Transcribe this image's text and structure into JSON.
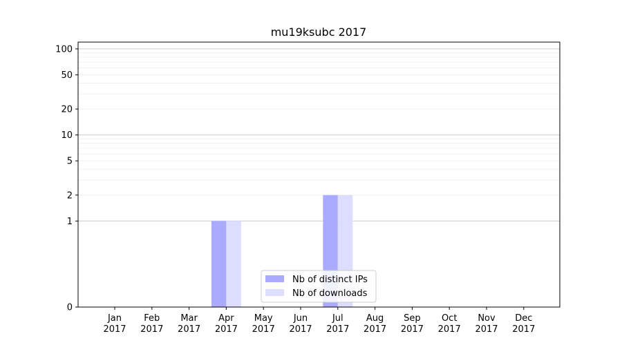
{
  "chart_data": {
    "type": "bar",
    "title": "mu19ksubc 2017",
    "xlabel": "",
    "ylabel": "",
    "y_scale": "symlog",
    "ylim": [
      0,
      120
    ],
    "y_ticks": [
      0,
      1,
      2,
      5,
      10,
      20,
      50,
      100
    ],
    "y_tick_labels": [
      "0",
      "1",
      "2",
      "5",
      "10",
      "20",
      "50",
      "100"
    ],
    "grid": true,
    "legend_position": "bottom-center",
    "categories": [
      [
        "Jan",
        "2017"
      ],
      [
        "Feb",
        "2017"
      ],
      [
        "Mar",
        "2017"
      ],
      [
        "Apr",
        "2017"
      ],
      [
        "May",
        "2017"
      ],
      [
        "Jun",
        "2017"
      ],
      [
        "Jul",
        "2017"
      ],
      [
        "Aug",
        "2017"
      ],
      [
        "Sep",
        "2017"
      ],
      [
        "Oct",
        "2017"
      ],
      [
        "Nov",
        "2017"
      ],
      [
        "Dec",
        "2017"
      ]
    ],
    "series": [
      {
        "name": "Nb of distinct IPs",
        "color": "#aaaaff",
        "values": [
          0,
          0,
          0,
          1,
          0,
          0,
          2,
          0,
          0,
          0,
          0,
          0
        ]
      },
      {
        "name": "Nb of downloads",
        "color": "#ddddff",
        "values": [
          0,
          0,
          0,
          1,
          0,
          0,
          2,
          0,
          0,
          0,
          0,
          0
        ]
      }
    ]
  }
}
